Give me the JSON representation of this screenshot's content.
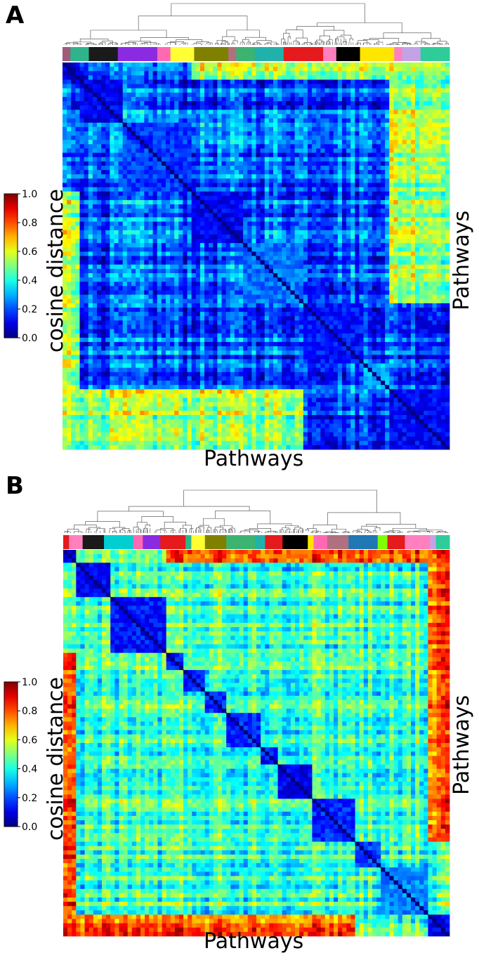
{
  "chart_data": [
    {
      "panel": "A",
      "type": "heatmap",
      "xlabel": "Pathways",
      "ylabel": "Pathways",
      "colorbar": {
        "label": "cosine distance",
        "ticks": [
          "1.0",
          "0.8",
          "0.6",
          "0.4",
          "0.2",
          "0.0"
        ],
        "range": [
          0,
          1
        ],
        "colormap": "jet"
      },
      "dendrogram": "top",
      "cluster_bar_colors": [
        "#a05a7a",
        "#2fb38a",
        "#1a1a1a",
        "#8a2be2",
        "#ff69b4",
        "#ffff33",
        "#808000",
        "#b07080",
        "#3cb371",
        "#20b2aa",
        "#e41a1c",
        "#ff7fbf",
        "#000000",
        "#ffe600",
        "#ff7fbf",
        "#c3a3e6",
        "#2ecc99"
      ],
      "clusters": [
        {
          "start": 0.0,
          "end": 0.05,
          "value": 0.02
        },
        {
          "start": 0.05,
          "end": 0.16,
          "value": 0.05
        },
        {
          "start": 0.16,
          "end": 0.33,
          "value": 0.12
        },
        {
          "start": 0.33,
          "end": 0.47,
          "value": 0.05
        },
        {
          "start": 0.47,
          "end": 0.62,
          "value": 0.18
        },
        {
          "start": 0.62,
          "end": 0.78,
          "value": 0.08
        },
        {
          "start": 0.78,
          "end": 0.84,
          "value": 0.25
        },
        {
          "start": 0.84,
          "end": 1.0,
          "value": 0.06
        }
      ],
      "background_in_block": 0.22,
      "background_cross": 0.55
    },
    {
      "panel": "B",
      "type": "heatmap",
      "xlabel": "Pathways",
      "ylabel": "Pathways",
      "colorbar": {
        "label": "cosine distance",
        "ticks": [
          "1.0",
          "0.8",
          "0.6",
          "0.4",
          "0.2",
          "0.0"
        ],
        "range": [
          0,
          1
        ],
        "colormap": "jet"
      },
      "dendrogram": "top",
      "cluster_bar_colors": [
        "#e41a1c",
        "#ff7fbf",
        "#1a1a1a",
        "#00ced1",
        "#ff69b4",
        "#8a2be2",
        "#e41a1c",
        "#2fb38a",
        "#ffff33",
        "#808000",
        "#3cb371",
        "#20b2aa",
        "#e41a1c",
        "#000000",
        "#ffe600",
        "#ff69b4",
        "#b07080",
        "#1f77b4",
        "#7fff00",
        "#e41a1c",
        "#ff7fbf",
        "#c3a3e6",
        "#2ecc99"
      ],
      "clusters": [
        {
          "start": 0.0,
          "end": 0.03,
          "value": 0.03
        },
        {
          "start": 0.03,
          "end": 0.12,
          "value": 0.05
        },
        {
          "start": 0.12,
          "end": 0.27,
          "value": 0.08
        },
        {
          "start": 0.27,
          "end": 0.31,
          "value": 0.1
        },
        {
          "start": 0.31,
          "end": 0.37,
          "value": 0.1
        },
        {
          "start": 0.37,
          "end": 0.42,
          "value": 0.1
        },
        {
          "start": 0.42,
          "end": 0.51,
          "value": 0.1
        },
        {
          "start": 0.51,
          "end": 0.56,
          "value": 0.08
        },
        {
          "start": 0.56,
          "end": 0.65,
          "value": 0.05
        },
        {
          "start": 0.65,
          "end": 0.76,
          "value": 0.1
        },
        {
          "start": 0.76,
          "end": 0.82,
          "value": 0.12
        },
        {
          "start": 0.82,
          "end": 0.94,
          "value": 0.2
        },
        {
          "start": 0.94,
          "end": 1.0,
          "value": 0.05
        }
      ],
      "background_in_block": 0.45,
      "background_cross": 0.78
    }
  ]
}
